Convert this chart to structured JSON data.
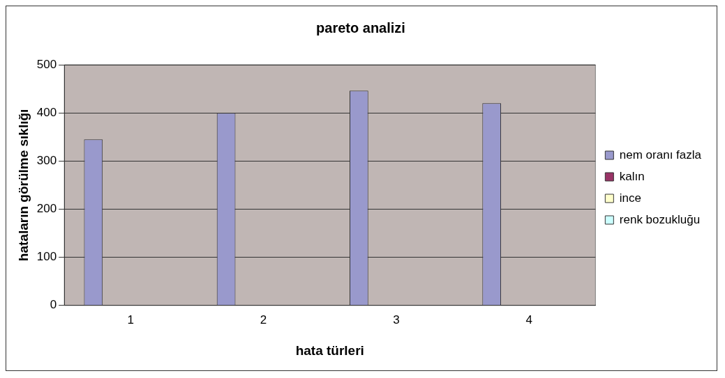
{
  "chart_data": {
    "type": "bar",
    "title": "pareto analizi",
    "xlabel": "hata türleri",
    "ylabel": "hataların görülme sıklığı",
    "categories": [
      "1",
      "2",
      "3",
      "4"
    ],
    "series": [
      {
        "name": "nem oranı fazla",
        "color": "#9999cc",
        "values": [
          345,
          400,
          446,
          420
        ]
      },
      {
        "name": "kalın",
        "color": "#993366",
        "values": [
          null,
          null,
          null,
          null
        ]
      },
      {
        "name": "ince",
        "color": "#ffffcc",
        "values": [
          null,
          null,
          null,
          null
        ]
      },
      {
        "name": "renk bozukluğu",
        "color": "#ccffff",
        "values": [
          null,
          null,
          null,
          null
        ]
      }
    ],
    "ylim": [
      0,
      500
    ],
    "yticks": [
      0,
      100,
      200,
      300,
      400,
      500
    ],
    "grid": "y",
    "legend": "right"
  }
}
